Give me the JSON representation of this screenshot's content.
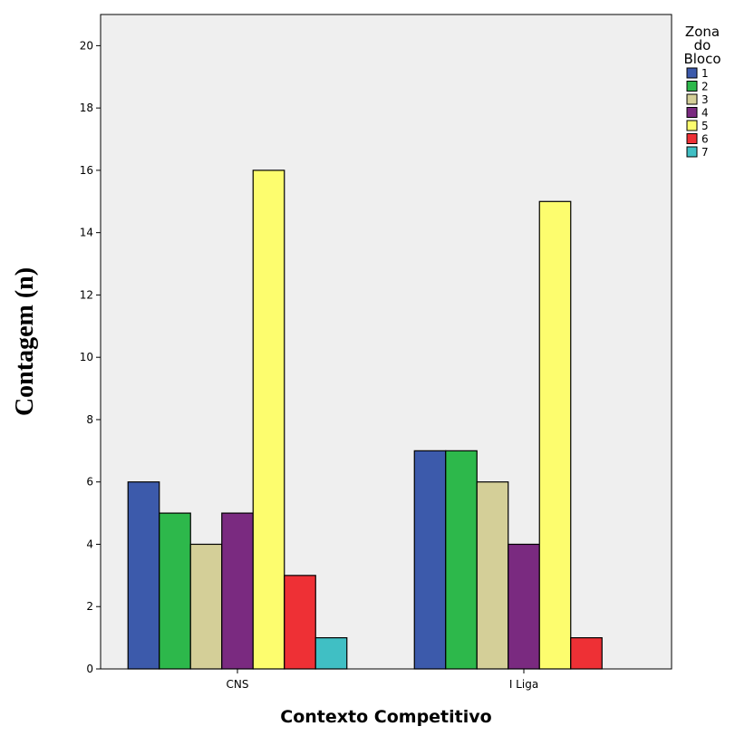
{
  "chart_data": {
    "type": "bar",
    "title": "",
    "xlabel": "Contexto Competitivo",
    "ylabel": "Contagem (n)",
    "categories": [
      "CNS",
      "I Liga"
    ],
    "ylim": [
      0,
      21
    ],
    "yticks": [
      0,
      2,
      4,
      6,
      8,
      10,
      12,
      14,
      16,
      18,
      20
    ],
    "grid": false,
    "legend": {
      "title_lines": [
        "Zona",
        "do",
        "Bloco"
      ],
      "placement": "right"
    },
    "series": [
      {
        "name": "1",
        "color": "#3c5aab",
        "values": [
          6,
          7
        ]
      },
      {
        "name": "2",
        "color": "#2db84b",
        "values": [
          5,
          7
        ]
      },
      {
        "name": "3",
        "color": "#d4cf98",
        "values": [
          4,
          6
        ]
      },
      {
        "name": "4",
        "color": "#7a2a80",
        "values": [
          5,
          4
        ]
      },
      {
        "name": "5",
        "color": "#fdfd6e",
        "values": [
          16,
          15
        ]
      },
      {
        "name": "6",
        "color": "#ee3035",
        "values": [
          3,
          1
        ]
      },
      {
        "name": "7",
        "color": "#40bfc4",
        "values": [
          1,
          0
        ]
      }
    ],
    "plot_background": "#efefef"
  }
}
